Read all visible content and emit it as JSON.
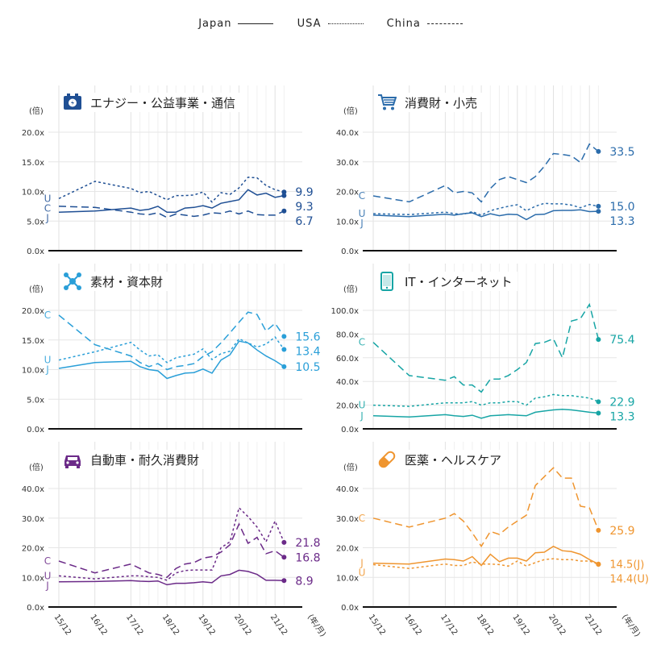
{
  "legend": {
    "japan": "Japan",
    "usa": "USA",
    "china": "China"
  },
  "y_unit": "(倍)",
  "x_unit": "(年/月)",
  "chart_data": {
    "type": "line",
    "x_tick_labels": [
      "15/12",
      "16/12",
      "17/12",
      "18/12",
      "19/12",
      "20/12",
      "21/12"
    ],
    "x": [
      0,
      1,
      2,
      2.25,
      2.5,
      2.75,
      3,
      3.25,
      3.5,
      3.75,
      4,
      4.25,
      4.5,
      4.75,
      5,
      5.25,
      5.5,
      5.75,
      6,
      6.25
    ],
    "panels": [
      {
        "title": "エナジー・公益事業・通信",
        "icon": "battery-icon",
        "color": "#1f4f94",
        "ylim": [
          0,
          20
        ],
        "yticks": [
          "0.0x",
          "5.0x",
          "10.0x",
          "15.0x",
          "20.0x"
        ],
        "ytick_values": [
          0,
          5,
          10,
          15,
          20
        ],
        "series": [
          {
            "name": "Japan",
            "letter": "J",
            "style": "solid",
            "end_label": "9.3",
            "values": [
              6.5,
              6.7,
              7.2,
              6.8,
              7.0,
              7.5,
              6.5,
              6.5,
              7.2,
              7.3,
              7.6,
              7.2,
              8.0,
              8.3,
              8.6,
              10.3,
              9.4,
              9.7,
              9.0,
              9.3
            ]
          },
          {
            "name": "USA",
            "letter": "U",
            "style": "dot",
            "end_label": "9.9",
            "values": [
              8.8,
              11.7,
              10.5,
              9.8,
              10.0,
              9.3,
              8.6,
              9.3,
              9.3,
              9.4,
              9.9,
              8.2,
              9.8,
              9.5,
              10.6,
              12.4,
              12.3,
              11.0,
              10.3,
              9.9
            ]
          },
          {
            "name": "China",
            "letter": "C",
            "style": "dash",
            "end_label": "6.7",
            "values": [
              7.5,
              7.3,
              6.5,
              6.2,
              6.1,
              6.4,
              5.6,
              6.2,
              6.0,
              5.8,
              6.0,
              6.4,
              6.3,
              6.7,
              6.2,
              6.7,
              6.1,
              6.0,
              6.0,
              6.7
            ]
          }
        ]
      },
      {
        "title": "消費財・小売",
        "icon": "cart-icon",
        "color": "#2b6cab",
        "ylim": [
          0,
          40
        ],
        "yticks": [
          "0.0x",
          "10.0x",
          "20.0x",
          "30.0x",
          "40.0x"
        ],
        "ytick_values": [
          0,
          10,
          20,
          30,
          40
        ],
        "series": [
          {
            "name": "Japan",
            "letter": "J",
            "style": "solid",
            "end_label": "13.3",
            "values": [
              12,
              11.5,
              12.3,
              12,
              12.5,
              12.8,
              11.5,
              12.5,
              11.8,
              12.3,
              12.2,
              10.5,
              12.2,
              12.3,
              13.5,
              13.6,
              13.6,
              13.8,
              13.2,
              13.3
            ]
          },
          {
            "name": "USA",
            "letter": "U",
            "style": "dot",
            "end_label": "15.0",
            "values": [
              12.5,
              12.2,
              13,
              12.5,
              12.3,
              13.2,
              12,
              13.5,
              14.3,
              15,
              15.5,
              13.5,
              15,
              16,
              15.8,
              15.8,
              15.4,
              14.5,
              15.6,
              15.0
            ]
          },
          {
            "name": "China",
            "letter": "C",
            "style": "dash",
            "end_label": "33.5",
            "values": [
              18.5,
              16.5,
              22,
              19.5,
              20,
              19.5,
              16.5,
              21,
              24,
              25,
              24,
              23,
              25,
              28.5,
              32.8,
              32.5,
              32,
              29.8,
              36,
              33.5
            ]
          }
        ]
      },
      {
        "title": "素材・資本財",
        "icon": "molecule-icon",
        "color": "#2a9fd8",
        "ylim": [
          0,
          20
        ],
        "yticks": [
          "0.0x",
          "5.0x",
          "10.0x",
          "15.0x",
          "20.0x"
        ],
        "ytick_values": [
          0,
          5,
          10,
          15,
          20
        ],
        "series": [
          {
            "name": "Japan",
            "letter": "J",
            "style": "solid",
            "end_label": "10.5",
            "values": [
              10.2,
              11.2,
              11.4,
              10.5,
              10,
              9.8,
              8.5,
              9,
              9.4,
              9.5,
              10.1,
              9.4,
              11.6,
              12.5,
              14.8,
              14.5,
              13.3,
              12.3,
              11.5,
              10.5
            ]
          },
          {
            "name": "USA",
            "letter": "U",
            "style": "dot",
            "end_label": "13.4",
            "values": [
              11.6,
              13,
              14.6,
              13.3,
              12.3,
              12.5,
              11.2,
              12,
              12.3,
              12.6,
              13.5,
              11.7,
              12.7,
              13.1,
              15.2,
              14.5,
              13.8,
              14.3,
              15.5,
              13.4
            ]
          },
          {
            "name": "China",
            "letter": "C",
            "style": "dash",
            "end_label": "15.6",
            "values": [
              19.2,
              14.2,
              12.3,
              11.2,
              10.5,
              11,
              10,
              10.5,
              10.7,
              11,
              12.2,
              13,
              14.5,
              16.2,
              18,
              19.7,
              19.3,
              16.5,
              17.8,
              15.6
            ]
          }
        ]
      },
      {
        "title": "IT・インターネット",
        "icon": "tablet-icon",
        "color": "#17a5a5",
        "ylim": [
          0,
          100
        ],
        "yticks": [
          "0.0x",
          "20.0x",
          "40.0x",
          "60.0x",
          "80.0x",
          "100.0x"
        ],
        "ytick_values": [
          0,
          20,
          40,
          60,
          80,
          100
        ],
        "series": [
          {
            "name": "Japan",
            "letter": "J",
            "style": "solid",
            "end_label": "13.3",
            "values": [
              11,
              10,
              12,
              11,
              10.5,
              11.5,
              9,
              11,
              11.5,
              12,
              11.5,
              11,
              14,
              15,
              16,
              16.5,
              16,
              15,
              14,
              13.3
            ]
          },
          {
            "name": "USA",
            "letter": "U",
            "style": "dot",
            "end_label": "22.9",
            "values": [
              20,
              19,
              22,
              22,
              22,
              23,
              20,
              22,
              22,
              23,
              23,
              20,
              26,
              27,
              29,
              28,
              28,
              27,
              26,
              22.9
            ]
          },
          {
            "name": "China",
            "letter": "C",
            "style": "dash",
            "end_label": "75.4",
            "values": [
              73,
              45,
              41,
              44,
              37,
              37,
              31,
              42,
              42,
              45,
              50,
              56,
              72,
              73,
              76,
              60,
              91,
              93,
              105,
              75.4
            ]
          }
        ]
      },
      {
        "title": "自動車・耐久消費財",
        "icon": "car-icon",
        "color": "#6b2a88",
        "ylim": [
          0,
          40
        ],
        "yticks": [
          "0.0x",
          "10.0x",
          "20.0x",
          "30.0x",
          "40.0x"
        ],
        "ytick_values": [
          0,
          10,
          20,
          30,
          40
        ],
        "series": [
          {
            "name": "Japan",
            "letter": "J",
            "style": "solid",
            "end_label": "8.9",
            "values": [
              8.5,
              8.6,
              8.9,
              8.7,
              8.6,
              8.8,
              7.5,
              8,
              8,
              8.2,
              8.5,
              8.2,
              10.5,
              11,
              12.4,
              12,
              11,
              9,
              9,
              8.9
            ]
          },
          {
            "name": "USA",
            "letter": "U",
            "style": "dot",
            "end_label": "21.8",
            "values": [
              10.5,
              9.5,
              10.5,
              10.5,
              10.2,
              10,
              9,
              11.5,
              12.3,
              12.5,
              12.5,
              12.5,
              20,
              22,
              33.5,
              30.5,
              27,
              22,
              29,
              21.8
            ]
          },
          {
            "name": "China",
            "letter": "C",
            "style": "dash",
            "end_label": "16.8",
            "values": [
              15.5,
              11.5,
              14.5,
              13,
              11.5,
              11,
              10,
              13,
              14.5,
              15,
              16.5,
              17,
              18.5,
              21,
              28,
              21.5,
              23.5,
              18,
              19,
              16.8
            ]
          }
        ]
      },
      {
        "title": "医薬・ヘルスケア",
        "icon": "pill-icon",
        "color": "#ef952f",
        "ylim": [
          0,
          40
        ],
        "yticks": [
          "0.0x",
          "10.0x",
          "20.0x",
          "30.0x",
          "40.0x"
        ],
        "ytick_values": [
          0,
          10,
          20,
          30,
          40
        ],
        "series": [
          {
            "name": "Japan",
            "letter": "J",
            "style": "solid",
            "end_label": "14.5(J)",
            "values": [
              14.8,
              14.5,
              16.2,
              16,
              15.5,
              17,
              14,
              17.8,
              15.3,
              16.5,
              16.5,
              15.5,
              18.3,
              18.5,
              20.5,
              19,
              18.7,
              17.8,
              16,
              14.5
            ]
          },
          {
            "name": "USA",
            "letter": "U",
            "style": "dot",
            "end_label": "14.4(U)",
            "values": [
              14.3,
              13,
              14.5,
              14,
              14,
              15.2,
              14.5,
              14.5,
              14.3,
              13.8,
              15.5,
              13.8,
              15,
              16,
              16.3,
              16,
              16,
              15.5,
              15.5,
              14.4
            ]
          },
          {
            "name": "China",
            "letter": "C",
            "style": "dash",
            "end_label": "25.9",
            "values": [
              30,
              27,
              30,
              31.5,
              29,
              25,
              20.5,
              25.5,
              24.5,
              27,
              29,
              31,
              41,
              44,
              47,
              43.5,
              43.5,
              34,
              33.5,
              25.9
            ]
          }
        ]
      }
    ]
  }
}
